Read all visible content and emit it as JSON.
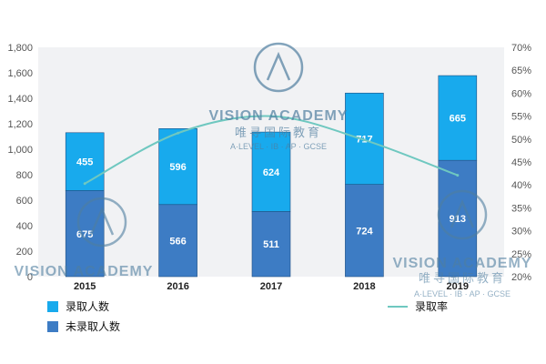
{
  "chart_data": {
    "type": "bar",
    "stacked": true,
    "categories": [
      "2015",
      "2016",
      "2017",
      "2018",
      "2019"
    ],
    "series": [
      {
        "name": "未录取人数",
        "values": [
          675,
          566,
          511,
          724,
          913
        ],
        "color": "#3d7cc4"
      },
      {
        "name": "录取人数",
        "values": [
          455,
          596,
          624,
          717,
          665
        ],
        "color": "#18aaed"
      }
    ],
    "line_series": {
      "name": "录取率",
      "values": [
        40.3,
        51.3,
        55.0,
        49.8,
        42.1
      ],
      "color": "#6fc8c0",
      "axis": "right"
    },
    "ylim": [
      0,
      1800
    ],
    "y_ticks": [
      "0",
      "200",
      "400",
      "600",
      "800",
      "1,000",
      "1,200",
      "1,400",
      "1,600",
      "1,800"
    ],
    "y2lim": [
      20,
      70
    ],
    "y2_ticks": [
      "20%",
      "25%",
      "30%",
      "35%",
      "40%",
      "45%",
      "50%",
      "55%",
      "60%",
      "65%",
      "70%"
    ],
    "legend_position": "bottom",
    "grid": false
  },
  "watermark": {
    "title": "VISION ACADEMY",
    "chinese": "唯寻国际教育",
    "subtitle": "A·LEVEL · IB · AP · GCSE"
  }
}
